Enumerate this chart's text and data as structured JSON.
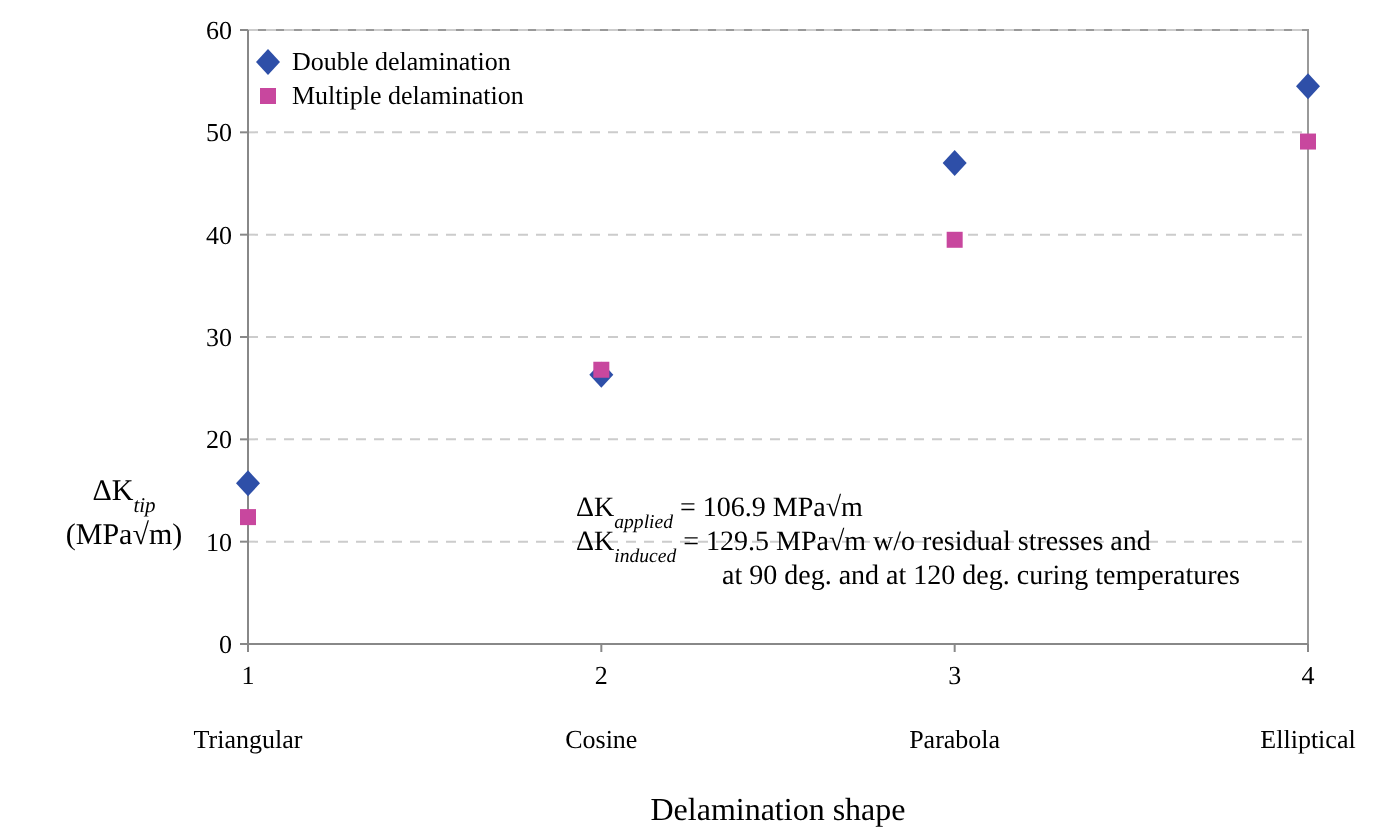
{
  "chart_data": {
    "type": "scatter",
    "xlabel": "Delamination shape",
    "ylabel": "ΔK$_{tip}$ (MPa√m)",
    "categories": [
      "Triangular",
      "Cosine",
      "Parabola",
      "Elliptical"
    ],
    "ylim": [
      0,
      60
    ],
    "yticks": [
      0,
      10,
      20,
      30,
      40,
      50,
      60
    ],
    "grid": "y",
    "legend": "top left",
    "series": [
      {
        "name": "Double delamination",
        "color": "#2e4fa8",
        "marker": "diamond",
        "values": [
          15.7,
          26.3,
          47.0,
          54.5
        ]
      },
      {
        "name": "Multiple delamination",
        "color": "#c8479e",
        "marker": "square",
        "values": [
          12.4,
          26.8,
          39.5,
          49.1
        ]
      }
    ],
    "annotations": [
      "ΔK$_{applied}$ = 106.9 MPa√m",
      "ΔK$_{induced}$ = 129.5 MPa√m w/o residual stresses and",
      "at 90 deg. and at 120 deg. curing temperatures",
      "1",
      "2",
      "3",
      "4"
    ]
  }
}
